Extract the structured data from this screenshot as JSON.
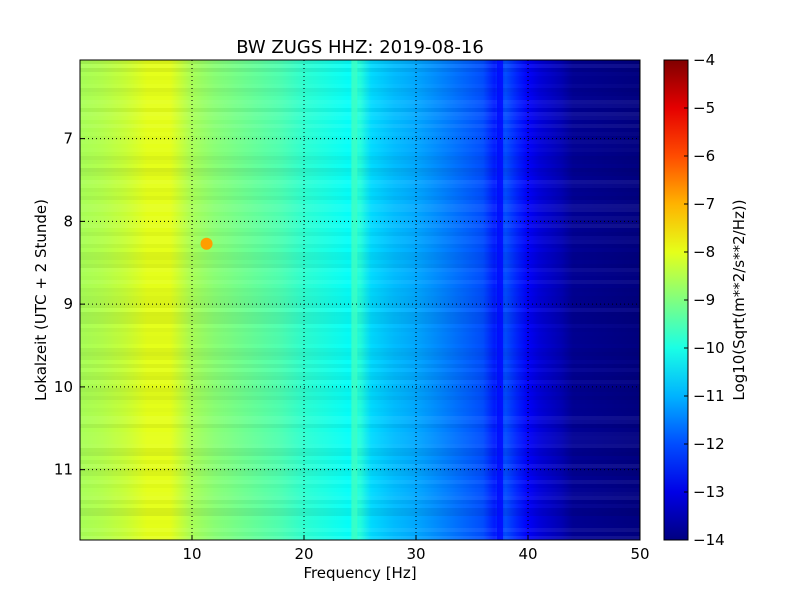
{
  "chart_data": {
    "type": "heatmap",
    "title": "BW ZUGS HHZ: 2019-08-16",
    "xlabel": "Frequency [Hz]",
    "ylabel": "Lokalzeit (UTC + 2 Stunde)",
    "xlim": [
      0,
      50
    ],
    "ylim": [
      6.05,
      11.85
    ],
    "y_inverted": true,
    "grid": true,
    "x_ticks": [
      10,
      20,
      30,
      40,
      50
    ],
    "y_ticks": [
      7,
      8,
      9,
      10,
      11
    ],
    "colormap": "jet",
    "colorbar": {
      "label": "Log10(Sqrt(m**2/s**2/Hz))",
      "range": [
        -14,
        -4
      ],
      "ticks": [
        -14,
        -13,
        -12,
        -11,
        -10,
        -9,
        -8,
        -7,
        -6,
        -5,
        -4
      ]
    },
    "frequency_profile": {
      "frequency_hz": [
        0,
        2,
        4,
        6,
        8,
        10,
        12,
        14,
        16,
        18,
        20,
        22,
        24,
        25,
        26,
        28,
        30,
        32,
        34,
        36,
        37,
        38,
        39,
        40,
        41,
        42,
        43,
        44,
        50
      ],
      "log_amplitude": [
        -8.6,
        -8.5,
        -8.3,
        -8.0,
        -8.0,
        -8.6,
        -8.9,
        -9.1,
        -9.3,
        -9.5,
        -9.8,
        -10.0,
        -10.2,
        -9.9,
        -10.6,
        -10.9,
        -11.1,
        -11.4,
        -11.7,
        -12.0,
        -12.5,
        -12.0,
        -12.4,
        -12.8,
        -13.1,
        -13.3,
        -13.5,
        -13.8,
        -14.0
      ]
    },
    "annotations": [
      {
        "label": "local maximum",
        "frequency_hz": 11.3,
        "time": 8.27,
        "log_amplitude": -6.8
      },
      {
        "label": "spectral line",
        "frequency_hz": 24.5,
        "log_amplitude": -9.6
      },
      {
        "label": "spectral line",
        "frequency_hz": 37.5,
        "log_amplitude": -12.7
      }
    ]
  },
  "colors": {
    "grid": "#000000",
    "background": "#ffffff"
  }
}
